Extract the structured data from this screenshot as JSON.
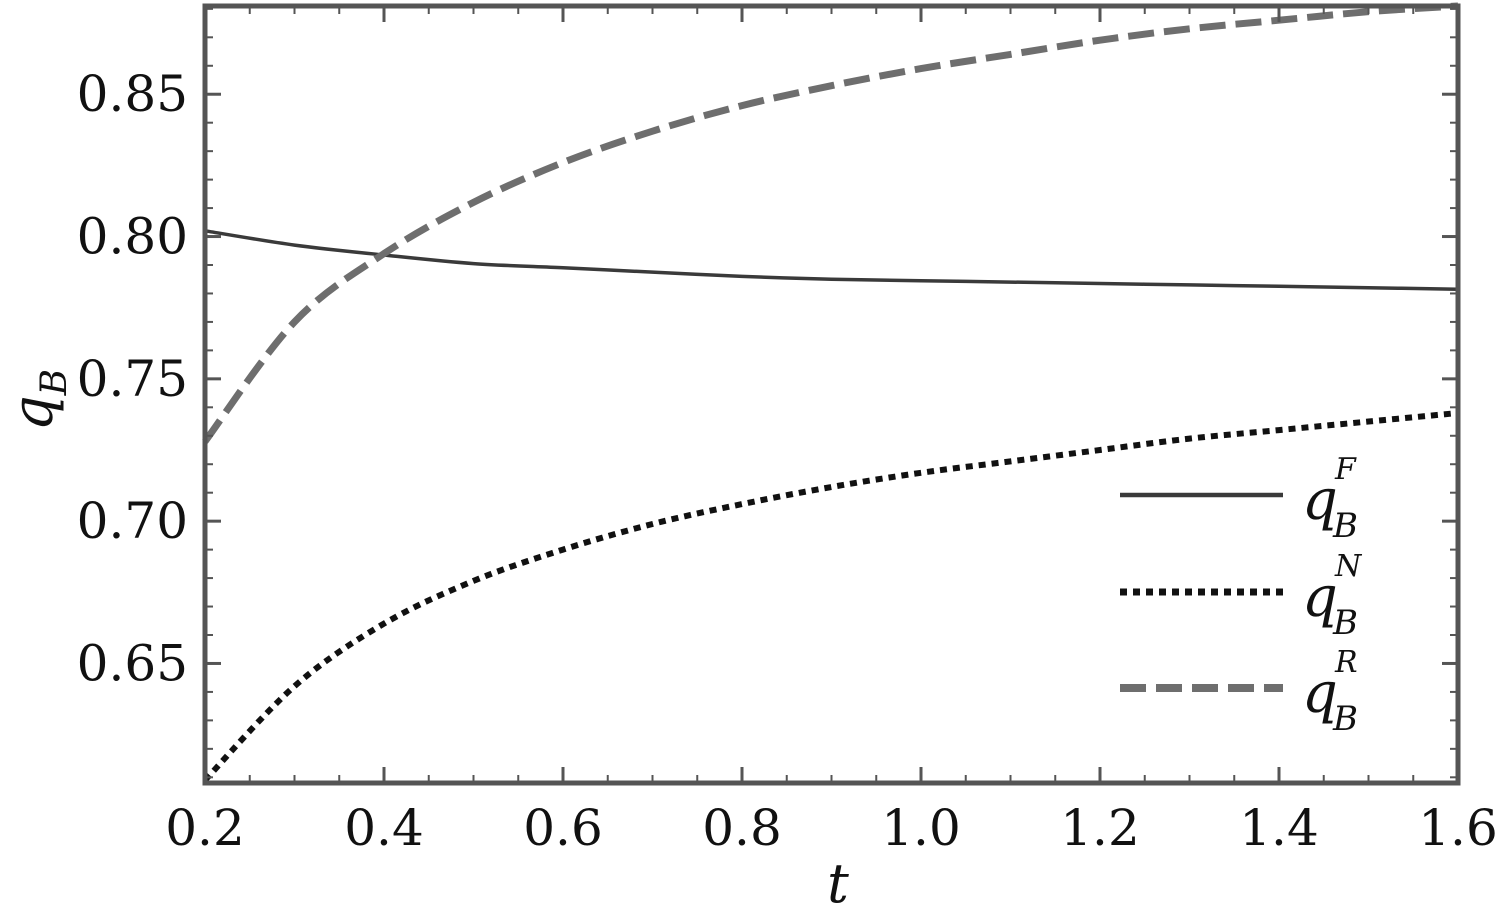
{
  "chart_data": {
    "type": "line",
    "title": "",
    "xlabel": "t",
    "ylabel": {
      "base": "q",
      "sub": "B"
    },
    "xlim": [
      0.2,
      1.6
    ],
    "ylim": [
      0.608,
      0.881
    ],
    "xticks": [
      "0.2",
      "0.4",
      "0.6",
      "0.8",
      "1.0",
      "1.2",
      "1.4",
      "1.6"
    ],
    "yticks": [
      "0.65",
      "0.70",
      "0.75",
      "0.80",
      "0.85"
    ],
    "grid": false,
    "legend_position": "bottom-right",
    "x": [
      0.2,
      0.3,
      0.4,
      0.5,
      0.6,
      0.7,
      0.8,
      0.9,
      1.0,
      1.1,
      1.2,
      1.3,
      1.4,
      1.5,
      1.6
    ],
    "series": [
      {
        "name": "q_B^F",
        "label": {
          "base": "q",
          "sub": "B",
          "sup": "F"
        },
        "style": "solid",
        "color": "#3a3a3a",
        "values": [
          0.802,
          0.797,
          0.7935,
          0.7905,
          0.789,
          0.7875,
          0.786,
          0.785,
          0.7845,
          0.784,
          0.7835,
          0.783,
          0.7825,
          0.782,
          0.7815
        ]
      },
      {
        "name": "q_B^N",
        "label": {
          "base": "q",
          "sub": "B",
          "sup": "N"
        },
        "style": "dotted",
        "color": "#111111",
        "values": [
          0.609,
          0.642,
          0.664,
          0.679,
          0.69,
          0.699,
          0.706,
          0.712,
          0.717,
          0.721,
          0.725,
          0.729,
          0.732,
          0.735,
          0.738
        ]
      },
      {
        "name": "q_B^R",
        "label": {
          "base": "q",
          "sub": "B",
          "sup": "R"
        },
        "style": "dashed",
        "color": "#6e6e6e",
        "values": [
          0.728,
          0.77,
          0.794,
          0.812,
          0.826,
          0.837,
          0.846,
          0.853,
          0.859,
          0.864,
          0.869,
          0.873,
          0.876,
          0.879,
          0.881
        ]
      }
    ]
  }
}
